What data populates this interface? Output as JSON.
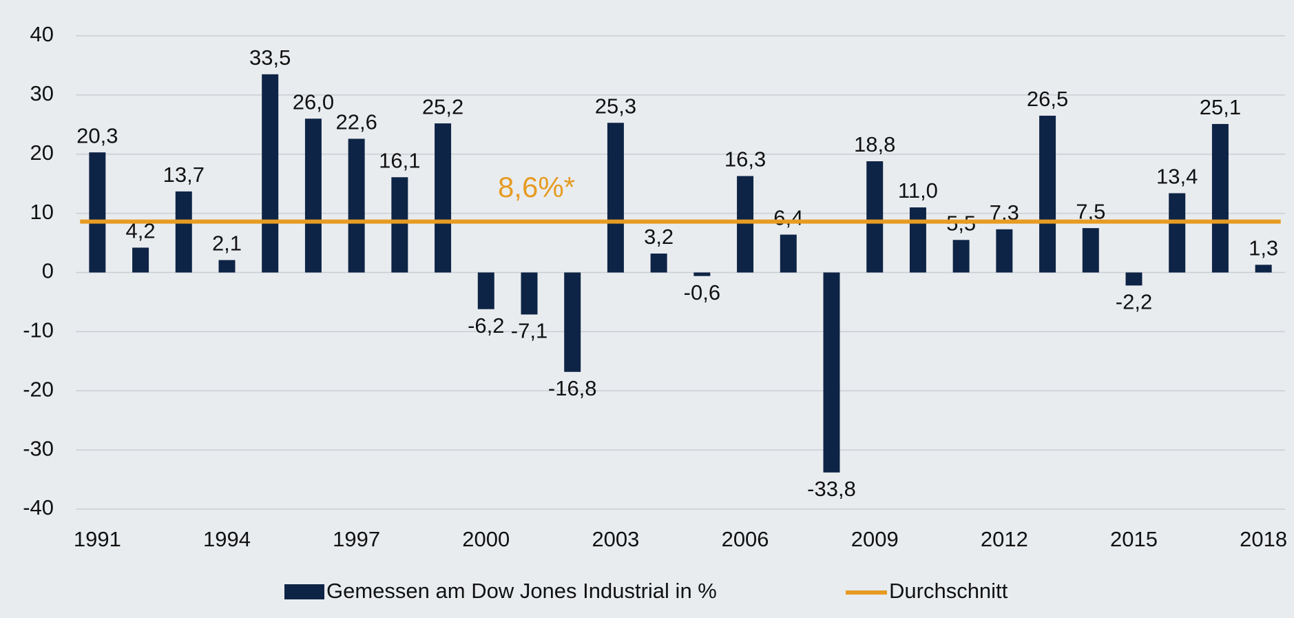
{
  "chart_data": {
    "type": "bar",
    "categories": [
      "1991",
      null,
      null,
      "1994",
      null,
      null,
      "1997",
      null,
      null,
      "2000",
      null,
      null,
      "2003",
      null,
      null,
      "2006",
      null,
      null,
      "2009",
      null,
      null,
      "2012",
      null,
      null,
      "2015",
      null,
      null,
      "2018"
    ],
    "series": [
      {
        "name": "Gemessen am Dow Jones Industrial in %",
        "color": "#0e2446",
        "values": [
          20.3,
          4.2,
          13.7,
          2.1,
          33.5,
          26.0,
          22.6,
          16.1,
          25.2,
          -6.2,
          -7.1,
          -16.8,
          25.3,
          3.2,
          -0.6,
          16.3,
          6.4,
          -33.8,
          18.8,
          11.0,
          5.5,
          7.3,
          26.5,
          7.5,
          -2.2,
          13.4,
          25.1,
          1.3
        ],
        "value_labels": [
          "20,3",
          "4,2",
          "13,7",
          "2,1",
          "33,5",
          "26,0",
          "22,6",
          "16,1",
          "25,2",
          "-6,2",
          "-7,1",
          "-16,8",
          "25,3",
          "3,2",
          "-0,6",
          "16,3",
          "6,4",
          "-33,8",
          "18,8",
          "11,0",
          "5,5",
          "7,3",
          "26,5",
          "7,5",
          "-2,2",
          "13,4",
          "25,1",
          "1,3"
        ]
      }
    ],
    "average": {
      "name": "Durchschnitt",
      "color": "#e69b22",
      "value": 8.6,
      "label": "8,6%*"
    },
    "ylim": [
      -40,
      40
    ],
    "yticks": [
      -40,
      -30,
      -20,
      -10,
      0,
      10,
      20,
      30,
      40
    ],
    "grid": true
  }
}
